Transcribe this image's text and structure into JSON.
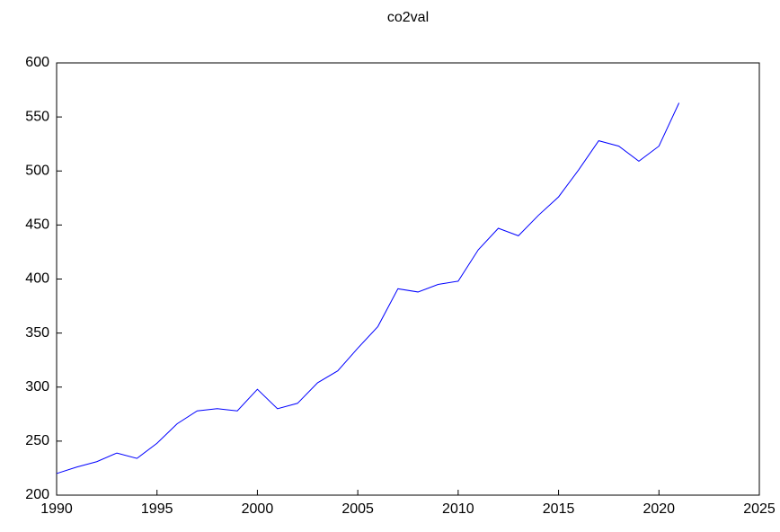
{
  "chart_data": {
    "type": "line",
    "title": "co2val",
    "x": [
      1990,
      1991,
      1992,
      1993,
      1994,
      1995,
      1996,
      1997,
      1998,
      1999,
      2000,
      2001,
      2002,
      2003,
      2004,
      2005,
      2006,
      2007,
      2008,
      2009,
      2010,
      2011,
      2012,
      2013,
      2014,
      2015,
      2016,
      2017,
      2018,
      2019,
      2020,
      2021
    ],
    "series": [
      {
        "name": "co2val",
        "color": "#0000ff",
        "values": [
          220,
          226,
          231,
          239,
          234,
          248,
          266,
          278,
          280,
          278,
          298,
          280,
          285,
          304,
          315,
          336,
          356,
          391,
          388,
          395,
          398,
          427,
          447,
          440,
          459,
          476,
          501,
          528,
          523,
          509,
          523,
          563
        ]
      }
    ],
    "xlim": [
      1990,
      2025
    ],
    "xticks": [
      1990,
      1995,
      2000,
      2005,
      2010,
      2015,
      2020,
      2025
    ],
    "ylim": [
      200,
      600
    ],
    "yticks": [
      200,
      250,
      300,
      350,
      400,
      450,
      500,
      550,
      600
    ],
    "grid": false
  }
}
